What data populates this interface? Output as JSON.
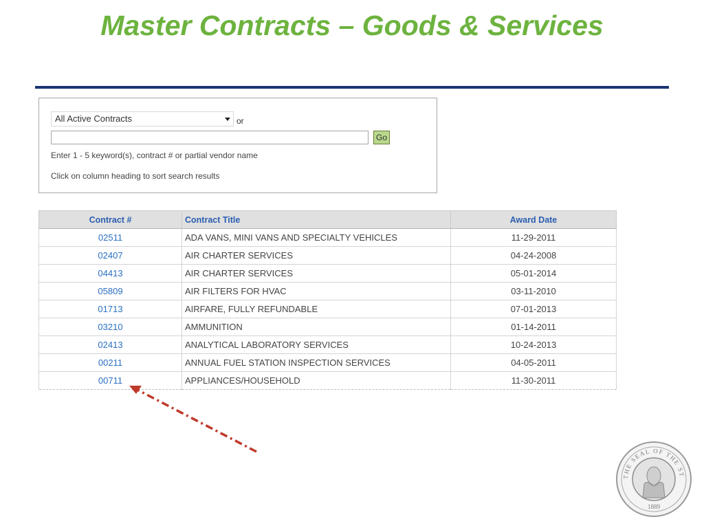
{
  "slide": {
    "title": "Master Contracts – Goods & Services"
  },
  "search": {
    "dropdown_value": "All Active Contracts",
    "or_label": "or",
    "input_value": "",
    "go_label": "Go",
    "hint_keywords": "Enter 1 - 5 keyword(s), contract # or partial vendor name",
    "hint_sort": "Click on column heading to sort search results"
  },
  "table": {
    "headers": {
      "contract_num": "Contract #",
      "contract_title": "Contract Title",
      "award_date": "Award Date"
    },
    "rows": [
      {
        "num": "02511",
        "title": "ADA VANS, MINI VANS AND SPECIALTY VEHICLES",
        "date": "11-29-2011"
      },
      {
        "num": "02407",
        "title": "AIR CHARTER SERVICES",
        "date": "04-24-2008"
      },
      {
        "num": "04413",
        "title": "AIR CHARTER SERVICES",
        "date": "05-01-2014"
      },
      {
        "num": "05809",
        "title": "AIR FILTERS FOR HVAC",
        "date": "03-11-2010"
      },
      {
        "num": "01713",
        "title": "AIRFARE, FULLY REFUNDABLE",
        "date": "07-01-2013"
      },
      {
        "num": "03210",
        "title": "AMMUNITION",
        "date": "01-14-2011"
      },
      {
        "num": "02413",
        "title": "ANALYTICAL LABORATORY SERVICES",
        "date": "10-24-2013"
      },
      {
        "num": "00211",
        "title": "ANNUAL FUEL STATION INSPECTION SERVICES",
        "date": "04-05-2011"
      },
      {
        "num": "00711",
        "title": "APPLIANCES/HOUSEHOLD",
        "date": "11-30-2011"
      }
    ]
  },
  "annotation": {
    "icon": "dash-dot-arrow-icon",
    "color": "#c0392b"
  },
  "seal": {
    "icon": "washington-state-seal-icon",
    "text_top": "THE SEAL OF THE STATE OF WASHINGTON",
    "year": "1889"
  },
  "colors": {
    "title": "#6db33f",
    "rule": "#1a3573",
    "link": "#2a6fc0",
    "go_button": "#b9d88c"
  }
}
